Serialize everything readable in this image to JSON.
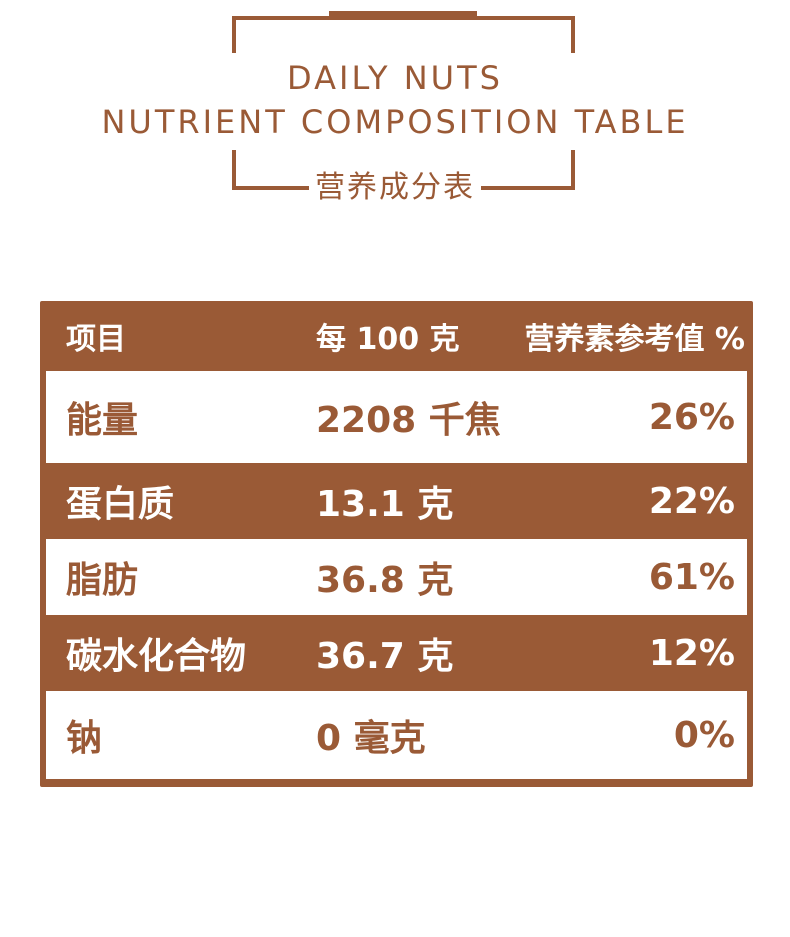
{
  "header": {
    "title_line1": "DAILY NUTS",
    "title_line2": "NUTRIENT COMPOSITION TABLE",
    "subtitle": "营养成分表"
  },
  "table": {
    "columns": [
      "项目",
      "每 100 克",
      "营养素参考值 %"
    ],
    "rows": [
      {
        "item": "能量",
        "per100": "2208 千焦",
        "nrv": "26%"
      },
      {
        "item": "蛋白质",
        "per100": "13.1 克",
        "nrv": "22%"
      },
      {
        "item": "脂肪",
        "per100": "36.8 克",
        "nrv": "61%"
      },
      {
        "item": "碳水化合物",
        "per100": "36.7 克",
        "nrv": "12%"
      },
      {
        "item": "钠",
        "per100": "0 毫克",
        "nrv": "0%"
      }
    ]
  },
  "colors": {
    "brand_brown": "#9a5a36",
    "background": "#ffffff"
  }
}
